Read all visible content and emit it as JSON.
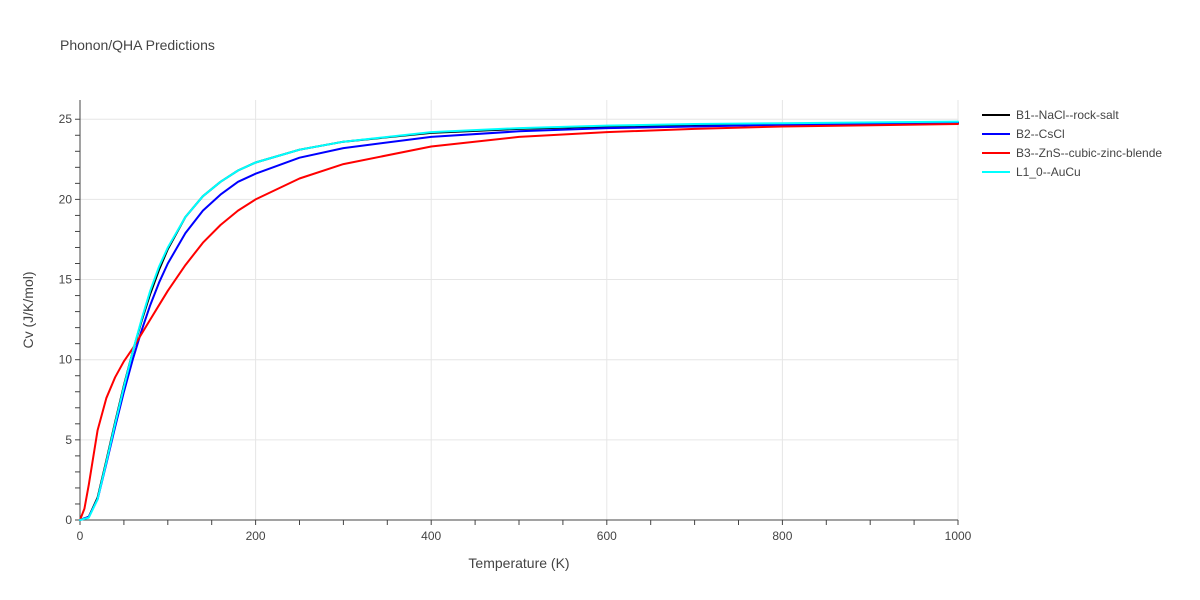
{
  "chart_data": {
    "type": "line",
    "title": "Phonon/QHA Predictions",
    "xlabel": "Temperature (K)",
    "ylabel": "Cv (J/K/mol)",
    "xlim": [
      0,
      1000
    ],
    "ylim": [
      0,
      26.2
    ],
    "x_ticks": [
      0,
      200,
      400,
      600,
      800,
      1000
    ],
    "y_ticks": [
      0,
      5,
      10,
      15,
      20,
      25
    ],
    "grid": true,
    "legend_position": "top-right, outside plot",
    "series": [
      {
        "name": "B1--NaCl--rock-salt",
        "color": "#000000",
        "x": [
          0,
          10,
          20,
          30,
          40,
          50,
          60,
          70,
          80,
          90,
          100,
          120,
          140,
          160,
          180,
          200,
          250,
          300,
          400,
          500,
          600,
          700,
          800,
          1000
        ],
        "y": [
          0,
          0.2,
          1.4,
          3.7,
          6.1,
          8.4,
          10.5,
          12.4,
          14.1,
          15.6,
          16.9,
          18.9,
          20.2,
          21.1,
          21.8,
          22.3,
          23.1,
          23.6,
          24.15,
          24.4,
          24.55,
          24.65,
          24.7,
          24.8
        ]
      },
      {
        "name": "B2--CsCl",
        "color": "#0000ff",
        "x": [
          0,
          10,
          20,
          30,
          40,
          50,
          60,
          70,
          80,
          90,
          100,
          120,
          140,
          160,
          180,
          200,
          250,
          300,
          400,
          500,
          600,
          700,
          800,
          1000
        ],
        "y": [
          0,
          0.2,
          1.3,
          3.5,
          5.8,
          8.0,
          10.0,
          11.8,
          13.4,
          14.8,
          16.0,
          17.9,
          19.3,
          20.3,
          21.1,
          21.6,
          22.6,
          23.2,
          23.9,
          24.25,
          24.45,
          24.55,
          24.65,
          24.75
        ]
      },
      {
        "name": "B3--ZnS--cubic-zinc-blende",
        "color": "#ff0000",
        "x": [
          0,
          5,
          10,
          20,
          30,
          40,
          50,
          60,
          70,
          80,
          90,
          100,
          120,
          140,
          160,
          180,
          200,
          250,
          300,
          400,
          500,
          600,
          700,
          800,
          1000
        ],
        "y": [
          0,
          0.7,
          2.2,
          5.6,
          7.6,
          8.9,
          9.9,
          10.7,
          11.6,
          12.5,
          13.4,
          14.3,
          15.9,
          17.3,
          18.4,
          19.3,
          20.0,
          21.3,
          22.2,
          23.3,
          23.9,
          24.2,
          24.4,
          24.55,
          24.7
        ]
      },
      {
        "name": "L1_0--AuCu",
        "color": "#00ffff",
        "x": [
          0,
          10,
          20,
          30,
          40,
          50,
          60,
          70,
          80,
          90,
          100,
          120,
          140,
          160,
          180,
          200,
          250,
          300,
          400,
          500,
          600,
          700,
          800,
          1000
        ],
        "y": [
          0,
          0.15,
          1.3,
          3.6,
          6.0,
          8.3,
          10.5,
          12.5,
          14.3,
          15.8,
          17.0,
          18.9,
          20.2,
          21.1,
          21.8,
          22.3,
          23.1,
          23.6,
          24.2,
          24.45,
          24.6,
          24.7,
          24.75,
          24.85
        ]
      }
    ]
  }
}
